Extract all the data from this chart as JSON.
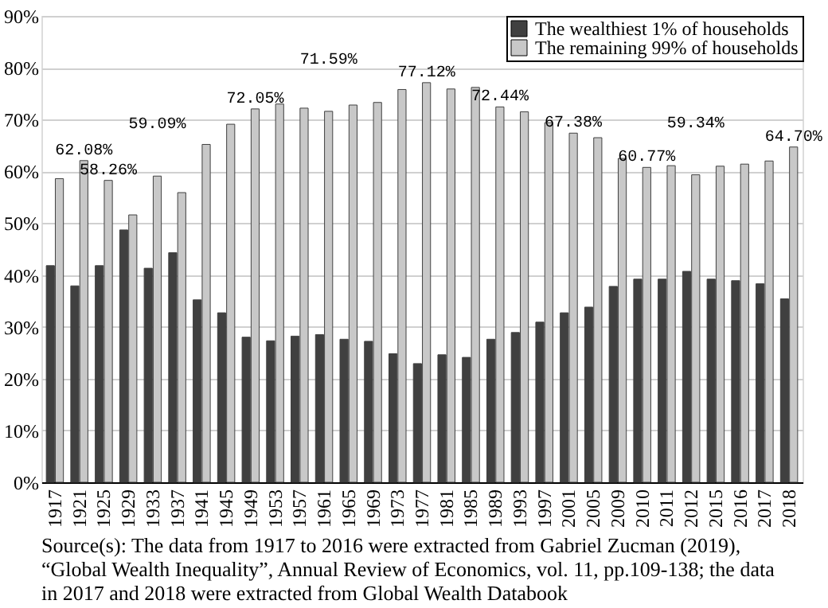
{
  "chart_data": {
    "type": "bar",
    "categories": [
      "1917",
      "1921",
      "1925",
      "1929",
      "1933",
      "1937",
      "1941",
      "1945",
      "1949",
      "1953",
      "1957",
      "1961",
      "1965",
      "1969",
      "1973",
      "1977",
      "1981",
      "1985",
      "1989",
      "1993",
      "1997",
      "2001",
      "2005",
      "2009",
      "2010",
      "2011",
      "2012",
      "2015",
      "2016",
      "2017",
      "2018"
    ],
    "series": [
      {
        "name": "The wealthiest 1% of households",
        "color": "#404040",
        "values": [
          41.8,
          37.9,
          41.8,
          48.7,
          41.3,
          44.3,
          35.2,
          32.7,
          28.0,
          27.3,
          28.2,
          28.5,
          27.6,
          27.2,
          24.8,
          22.9,
          24.6,
          24.1,
          27.6,
          28.9,
          30.9,
          32.7,
          33.8,
          37.8,
          39.2,
          39.2,
          40.7,
          39.2,
          38.9,
          38.3,
          35.4
        ]
      },
      {
        "name": "The remaining 99% of households",
        "color": "#c8c8c8",
        "values": [
          58.6,
          62.08,
          58.26,
          51.6,
          59.09,
          55.9,
          65.2,
          69.1,
          72.05,
          73.0,
          72.2,
          71.59,
          72.8,
          73.3,
          75.8,
          77.12,
          75.9,
          76.2,
          72.44,
          71.5,
          69.4,
          67.38,
          66.5,
          62.5,
          60.77,
          61.1,
          59.34,
          61.0,
          61.4,
          62.0,
          64.7
        ],
        "value_labels": [
          null,
          "62.08%",
          "58.26%",
          null,
          "59.09%",
          null,
          null,
          null,
          "72.05%",
          null,
          null,
          "71.59%",
          null,
          null,
          null,
          "77.12%",
          null,
          null,
          "72.44%",
          null,
          null,
          "67.38%",
          null,
          null,
          "60.77%",
          null,
          "59.34%",
          null,
          null,
          null,
          "64.70%"
        ]
      }
    ],
    "ylim": [
      0,
      90
    ],
    "yticks": [
      {
        "value": 0,
        "label": "0%"
      },
      {
        "value": 10,
        "label": "10%"
      },
      {
        "value": 20,
        "label": "20%"
      },
      {
        "value": 30,
        "label": "30%"
      },
      {
        "value": 40,
        "label": "40%"
      },
      {
        "value": 50,
        "label": "50%"
      },
      {
        "value": 60,
        "label": "60%"
      },
      {
        "value": 70,
        "label": "70%"
      },
      {
        "value": 80,
        "label": "80%"
      },
      {
        "value": 90,
        "label": "90%"
      }
    ],
    "grid": "y",
    "legend": "top right",
    "annotations": [
      "Source(s): The data from 1917 to 2016 were extracted from Gabriel Zucman (2019), “Global Wealth Inequality”, Annual Review of Economics, vol. 11, pp.109-138; the data in 2017 and 2018 were extracted from Global Wealth Databook"
    ]
  }
}
